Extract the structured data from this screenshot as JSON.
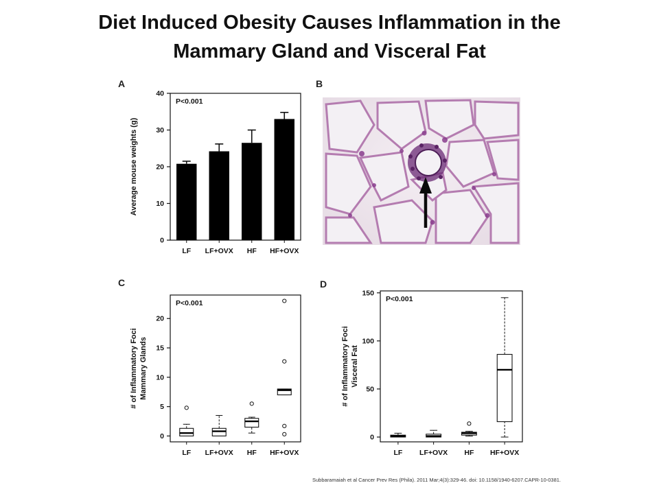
{
  "title": {
    "line1": "Diet Induced Obesity Causes Inflammation in the",
    "line2": "Mammary Gland and Visceral Fat"
  },
  "panels": {
    "a": "A",
    "b": "B",
    "c": "C",
    "d": "D"
  },
  "citation": "Subbaramaiah et al Cancer Prev Res (Phila). 2011 Mar;4(3):329-46. doi: 10.1158/1940-6207.CAPR-10-0381.",
  "chart_data": [
    {
      "panel": "A",
      "type": "bar",
      "categories": [
        "LF",
        "LF+OVX",
        "HF",
        "HF+OVX"
      ],
      "values": [
        20.8,
        24.2,
        26.5,
        33.0
      ],
      "errors": [
        0.7,
        2.0,
        3.5,
        1.8
      ],
      "ylabel": "Average mouse weights (g)",
      "ylim": [
        0,
        40
      ],
      "yticks": [
        0,
        10,
        20,
        30,
        40
      ],
      "annotation": "P<0.001",
      "bar_color": "#000000"
    },
    {
      "panel": "C",
      "type": "box",
      "categories": [
        "LF",
        "LF+OVX",
        "HF",
        "HF+OVX"
      ],
      "boxes": [
        {
          "whisker_low": 0,
          "q1": 0,
          "median": 0.5,
          "q3": 1.3,
          "whisker_high": 2.0,
          "outliers": [
            4.8
          ]
        },
        {
          "whisker_low": 0,
          "q1": 0,
          "median": 0.8,
          "q3": 1.3,
          "whisker_high": 3.5,
          "outliers": []
        },
        {
          "whisker_low": 0.5,
          "q1": 1.5,
          "median": 2.5,
          "q3": 3.0,
          "whisker_high": 3.2,
          "outliers": [
            5.5
          ]
        },
        {
          "whisker_low": 7.0,
          "q1": 7.0,
          "median": 7.8,
          "q3": 8.0,
          "whisker_high": 8.0,
          "outliers": [
            23.0,
            12.7,
            1.7,
            0.3
          ]
        }
      ],
      "ylabel": "# of Inflammatory Foci Mammary Glands",
      "ylabel_lines": [
        "# of Inflammatory Foci",
        "Mammary Glands"
      ],
      "ylim": [
        -1,
        24
      ],
      "yticks": [
        0,
        5,
        10,
        15,
        20
      ],
      "annotation": "P<0.001"
    },
    {
      "panel": "D",
      "type": "box",
      "categories": [
        "LF",
        "LF+OVX",
        "HF",
        "HF+OVX"
      ],
      "boxes": [
        {
          "whisker_low": 0,
          "q1": 0,
          "median": 1,
          "q3": 2,
          "whisker_high": 4,
          "outliers": []
        },
        {
          "whisker_low": 0,
          "q1": 0,
          "median": 1,
          "q3": 3,
          "whisker_high": 7,
          "outliers": []
        },
        {
          "whisker_low": 1,
          "q1": 2,
          "median": 4,
          "q3": 5,
          "whisker_high": 6,
          "outliers": [
            14
          ]
        },
        {
          "whisker_low": 0,
          "q1": 16,
          "median": 70,
          "q3": 86,
          "whisker_high": 145,
          "outliers": []
        }
      ],
      "ylabel": "# of Inflammatory Foci Visceral Fat",
      "ylabel_lines": [
        "# of Inflammatory Foci",
        "Visceral Fat"
      ],
      "ylim": [
        -5,
        152
      ],
      "yticks": [
        0,
        50,
        100,
        150
      ],
      "annotation": "P<0.001"
    }
  ]
}
